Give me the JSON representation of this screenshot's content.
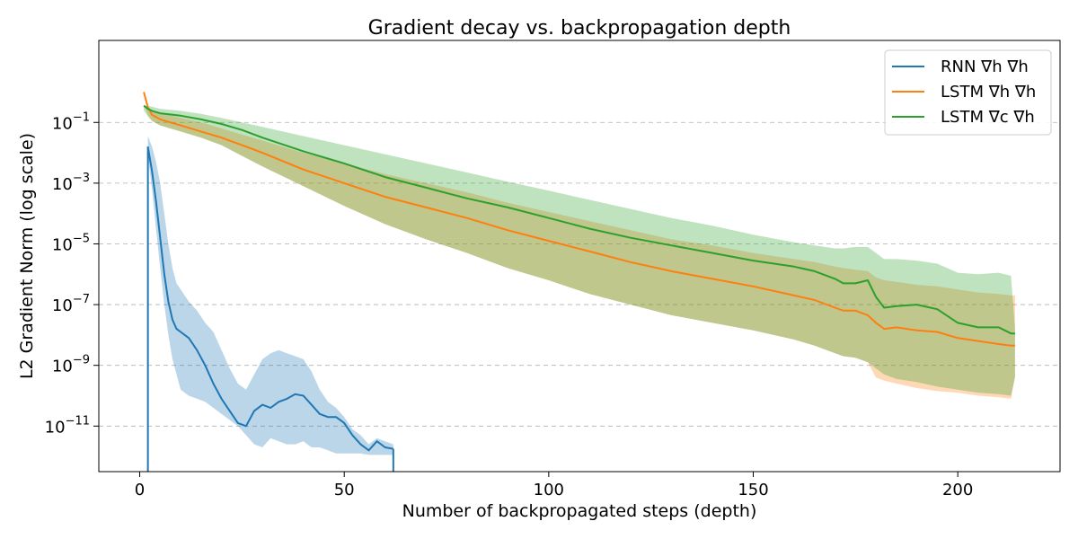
{
  "chart_data": {
    "type": "line",
    "title": "Gradient decay vs. backpropagation depth",
    "xlabel": "Number of backpropagated steps (depth)",
    "ylabel": "L2 Gradient Norm (log scale)",
    "xlim": [
      -10,
      225
    ],
    "ylim_log10": [
      -12.5,
      1.7
    ],
    "y_scale": "log",
    "grid": "y-dashed",
    "legend_position": "top-right",
    "x_ticks": [
      0,
      50,
      100,
      150,
      200
    ],
    "x_tick_labels": [
      "0",
      "50",
      "100",
      "150",
      "200"
    ],
    "y_ticks_log10": [
      -11,
      -9,
      -7,
      -5,
      -3,
      -1
    ],
    "y_tick_labels": [
      {
        "base": "10",
        "exp": "−11"
      },
      {
        "base": "10",
        "exp": "−9"
      },
      {
        "base": "10",
        "exp": "−7"
      },
      {
        "base": "10",
        "exp": "−5"
      },
      {
        "base": "10",
        "exp": "−3"
      },
      {
        "base": "10",
        "exp": "−1"
      }
    ],
    "series": [
      {
        "name": "RNN ∇h ∇h",
        "color": "#1f77b4",
        "fill_color": "#1f77b4",
        "x": [
          2,
          3,
          4,
          5,
          6,
          7,
          8,
          9,
          10,
          12,
          14,
          16,
          18,
          20,
          22,
          24,
          26,
          28,
          30,
          32,
          34,
          36,
          38,
          40,
          42,
          44,
          46,
          48,
          50,
          52,
          54,
          56,
          58,
          60,
          62
        ],
        "y_log10": [
          -1.8,
          -2.6,
          -3.6,
          -4.8,
          -6.0,
          -6.9,
          -7.5,
          -7.8,
          -7.9,
          -8.1,
          -8.5,
          -9.0,
          -9.6,
          -10.1,
          -10.5,
          -10.9,
          -11.0,
          -10.5,
          -10.3,
          -10.4,
          -10.2,
          -10.1,
          -9.95,
          -10.0,
          -10.3,
          -10.6,
          -10.7,
          -10.7,
          -10.9,
          -11.3,
          -11.6,
          -11.8,
          -11.5,
          -11.7,
          -11.75
        ],
        "y_lower_log10": [
          -2.1,
          -3.2,
          -4.5,
          -5.8,
          -7.0,
          -8.0,
          -8.8,
          -9.3,
          -9.8,
          -10.0,
          -10.1,
          -10.2,
          -10.4,
          -10.6,
          -10.8,
          -11.0,
          -11.3,
          -11.6,
          -11.7,
          -11.4,
          -11.5,
          -11.6,
          -11.6,
          -11.5,
          -11.7,
          -11.7,
          -11.8,
          -11.9,
          -11.9,
          -11.9,
          -11.9,
          -11.95,
          -11.95,
          -11.95,
          -11.95
        ],
        "y_upper_log10": [
          -1.45,
          -1.8,
          -2.3,
          -3.0,
          -4.0,
          -5.0,
          -5.8,
          -6.3,
          -6.5,
          -6.9,
          -7.2,
          -7.6,
          -7.9,
          -8.5,
          -9.1,
          -9.6,
          -9.8,
          -9.3,
          -8.8,
          -8.6,
          -8.5,
          -8.6,
          -8.7,
          -8.8,
          -9.2,
          -9.8,
          -10.2,
          -10.4,
          -10.7,
          -11.1,
          -11.3,
          -11.6,
          -11.4,
          -11.5,
          -11.6
        ],
        "vertical_lines_at_x": [
          2,
          62
        ]
      },
      {
        "name": "LSTM ∇h ∇h",
        "color": "#ff7f0e",
        "fill_color": "#ff7f0e",
        "x": [
          1,
          2,
          3,
          5,
          10,
          15,
          20,
          25,
          30,
          40,
          50,
          60,
          70,
          80,
          90,
          100,
          110,
          120,
          130,
          140,
          150,
          160,
          165,
          170,
          172,
          175,
          178,
          180,
          182,
          185,
          190,
          195,
          200,
          205,
          210,
          213,
          214
        ],
        "y_log10": [
          0.0,
          -0.5,
          -0.75,
          -0.9,
          -1.1,
          -1.3,
          -1.5,
          -1.75,
          -2.0,
          -2.55,
          -3.0,
          -3.45,
          -3.8,
          -4.15,
          -4.55,
          -4.9,
          -5.25,
          -5.6,
          -5.9,
          -6.15,
          -6.4,
          -6.7,
          -6.85,
          -7.1,
          -7.2,
          -7.2,
          -7.35,
          -7.6,
          -7.8,
          -7.75,
          -7.85,
          -7.9,
          -8.1,
          -8.2,
          -8.3,
          -8.35,
          -8.35
        ],
        "y_lower_log10": [
          -0.4,
          -0.75,
          -0.95,
          -1.1,
          -1.3,
          -1.5,
          -1.75,
          -2.1,
          -2.45,
          -3.1,
          -3.75,
          -4.35,
          -4.85,
          -5.3,
          -5.8,
          -6.2,
          -6.65,
          -7.0,
          -7.35,
          -7.6,
          -7.85,
          -8.15,
          -8.35,
          -8.6,
          -8.7,
          -8.75,
          -8.9,
          -9.4,
          -9.5,
          -9.6,
          -9.75,
          -9.85,
          -9.9,
          -10.0,
          -10.05,
          -10.1,
          -9.35
        ],
        "y_upper_log10": [
          -0.4,
          -0.5,
          -0.6,
          -0.7,
          -0.85,
          -1.0,
          -1.2,
          -1.4,
          -1.6,
          -2.0,
          -2.35,
          -2.7,
          -3.0,
          -3.3,
          -3.65,
          -3.95,
          -4.25,
          -4.55,
          -4.85,
          -5.05,
          -5.3,
          -5.5,
          -5.6,
          -5.75,
          -5.8,
          -5.85,
          -5.9,
          -6.1,
          -6.2,
          -6.25,
          -6.35,
          -6.4,
          -6.5,
          -6.6,
          -6.65,
          -6.7,
          -6.7
        ]
      },
      {
        "name": "LSTM ∇c ∇h",
        "color": "#2ca02c",
        "fill_color": "#2ca02c",
        "x": [
          1,
          2,
          3,
          5,
          10,
          15,
          20,
          25,
          30,
          40,
          50,
          60,
          70,
          80,
          90,
          100,
          110,
          120,
          130,
          140,
          150,
          160,
          165,
          170,
          172,
          175,
          178,
          180,
          182,
          185,
          190,
          195,
          200,
          205,
          210,
          213,
          214
        ],
        "y_log10": [
          -0.45,
          -0.55,
          -0.62,
          -0.7,
          -0.78,
          -0.9,
          -1.05,
          -1.25,
          -1.5,
          -1.95,
          -2.35,
          -2.8,
          -3.15,
          -3.5,
          -3.8,
          -4.15,
          -4.5,
          -4.8,
          -5.05,
          -5.3,
          -5.55,
          -5.75,
          -5.9,
          -6.15,
          -6.3,
          -6.3,
          -6.2,
          -6.75,
          -7.1,
          -7.05,
          -7.0,
          -7.15,
          -7.6,
          -7.75,
          -7.75,
          -7.95,
          -7.95
        ],
        "y_lower_log10": [
          -0.6,
          -0.8,
          -0.95,
          -1.1,
          -1.3,
          -1.5,
          -1.75,
          -2.1,
          -2.45,
          -3.1,
          -3.75,
          -4.35,
          -4.85,
          -5.3,
          -5.8,
          -6.2,
          -6.65,
          -7.0,
          -7.35,
          -7.6,
          -7.85,
          -8.15,
          -8.35,
          -8.6,
          -8.7,
          -8.75,
          -8.9,
          -9.1,
          -9.3,
          -9.45,
          -9.55,
          -9.7,
          -9.8,
          -9.9,
          -9.95,
          -10.0,
          -9.4
        ],
        "y_upper_log10": [
          -0.45,
          -0.45,
          -0.48,
          -0.55,
          -0.62,
          -0.72,
          -0.85,
          -1.0,
          -1.15,
          -1.45,
          -1.75,
          -2.05,
          -2.35,
          -2.65,
          -2.95,
          -3.25,
          -3.55,
          -3.85,
          -4.15,
          -4.4,
          -4.7,
          -4.95,
          -5.05,
          -5.15,
          -5.15,
          -5.1,
          -5.1,
          -5.3,
          -5.5,
          -5.5,
          -5.55,
          -5.65,
          -5.95,
          -6.0,
          -5.95,
          -6.05,
          -7.8
        ]
      }
    ]
  }
}
